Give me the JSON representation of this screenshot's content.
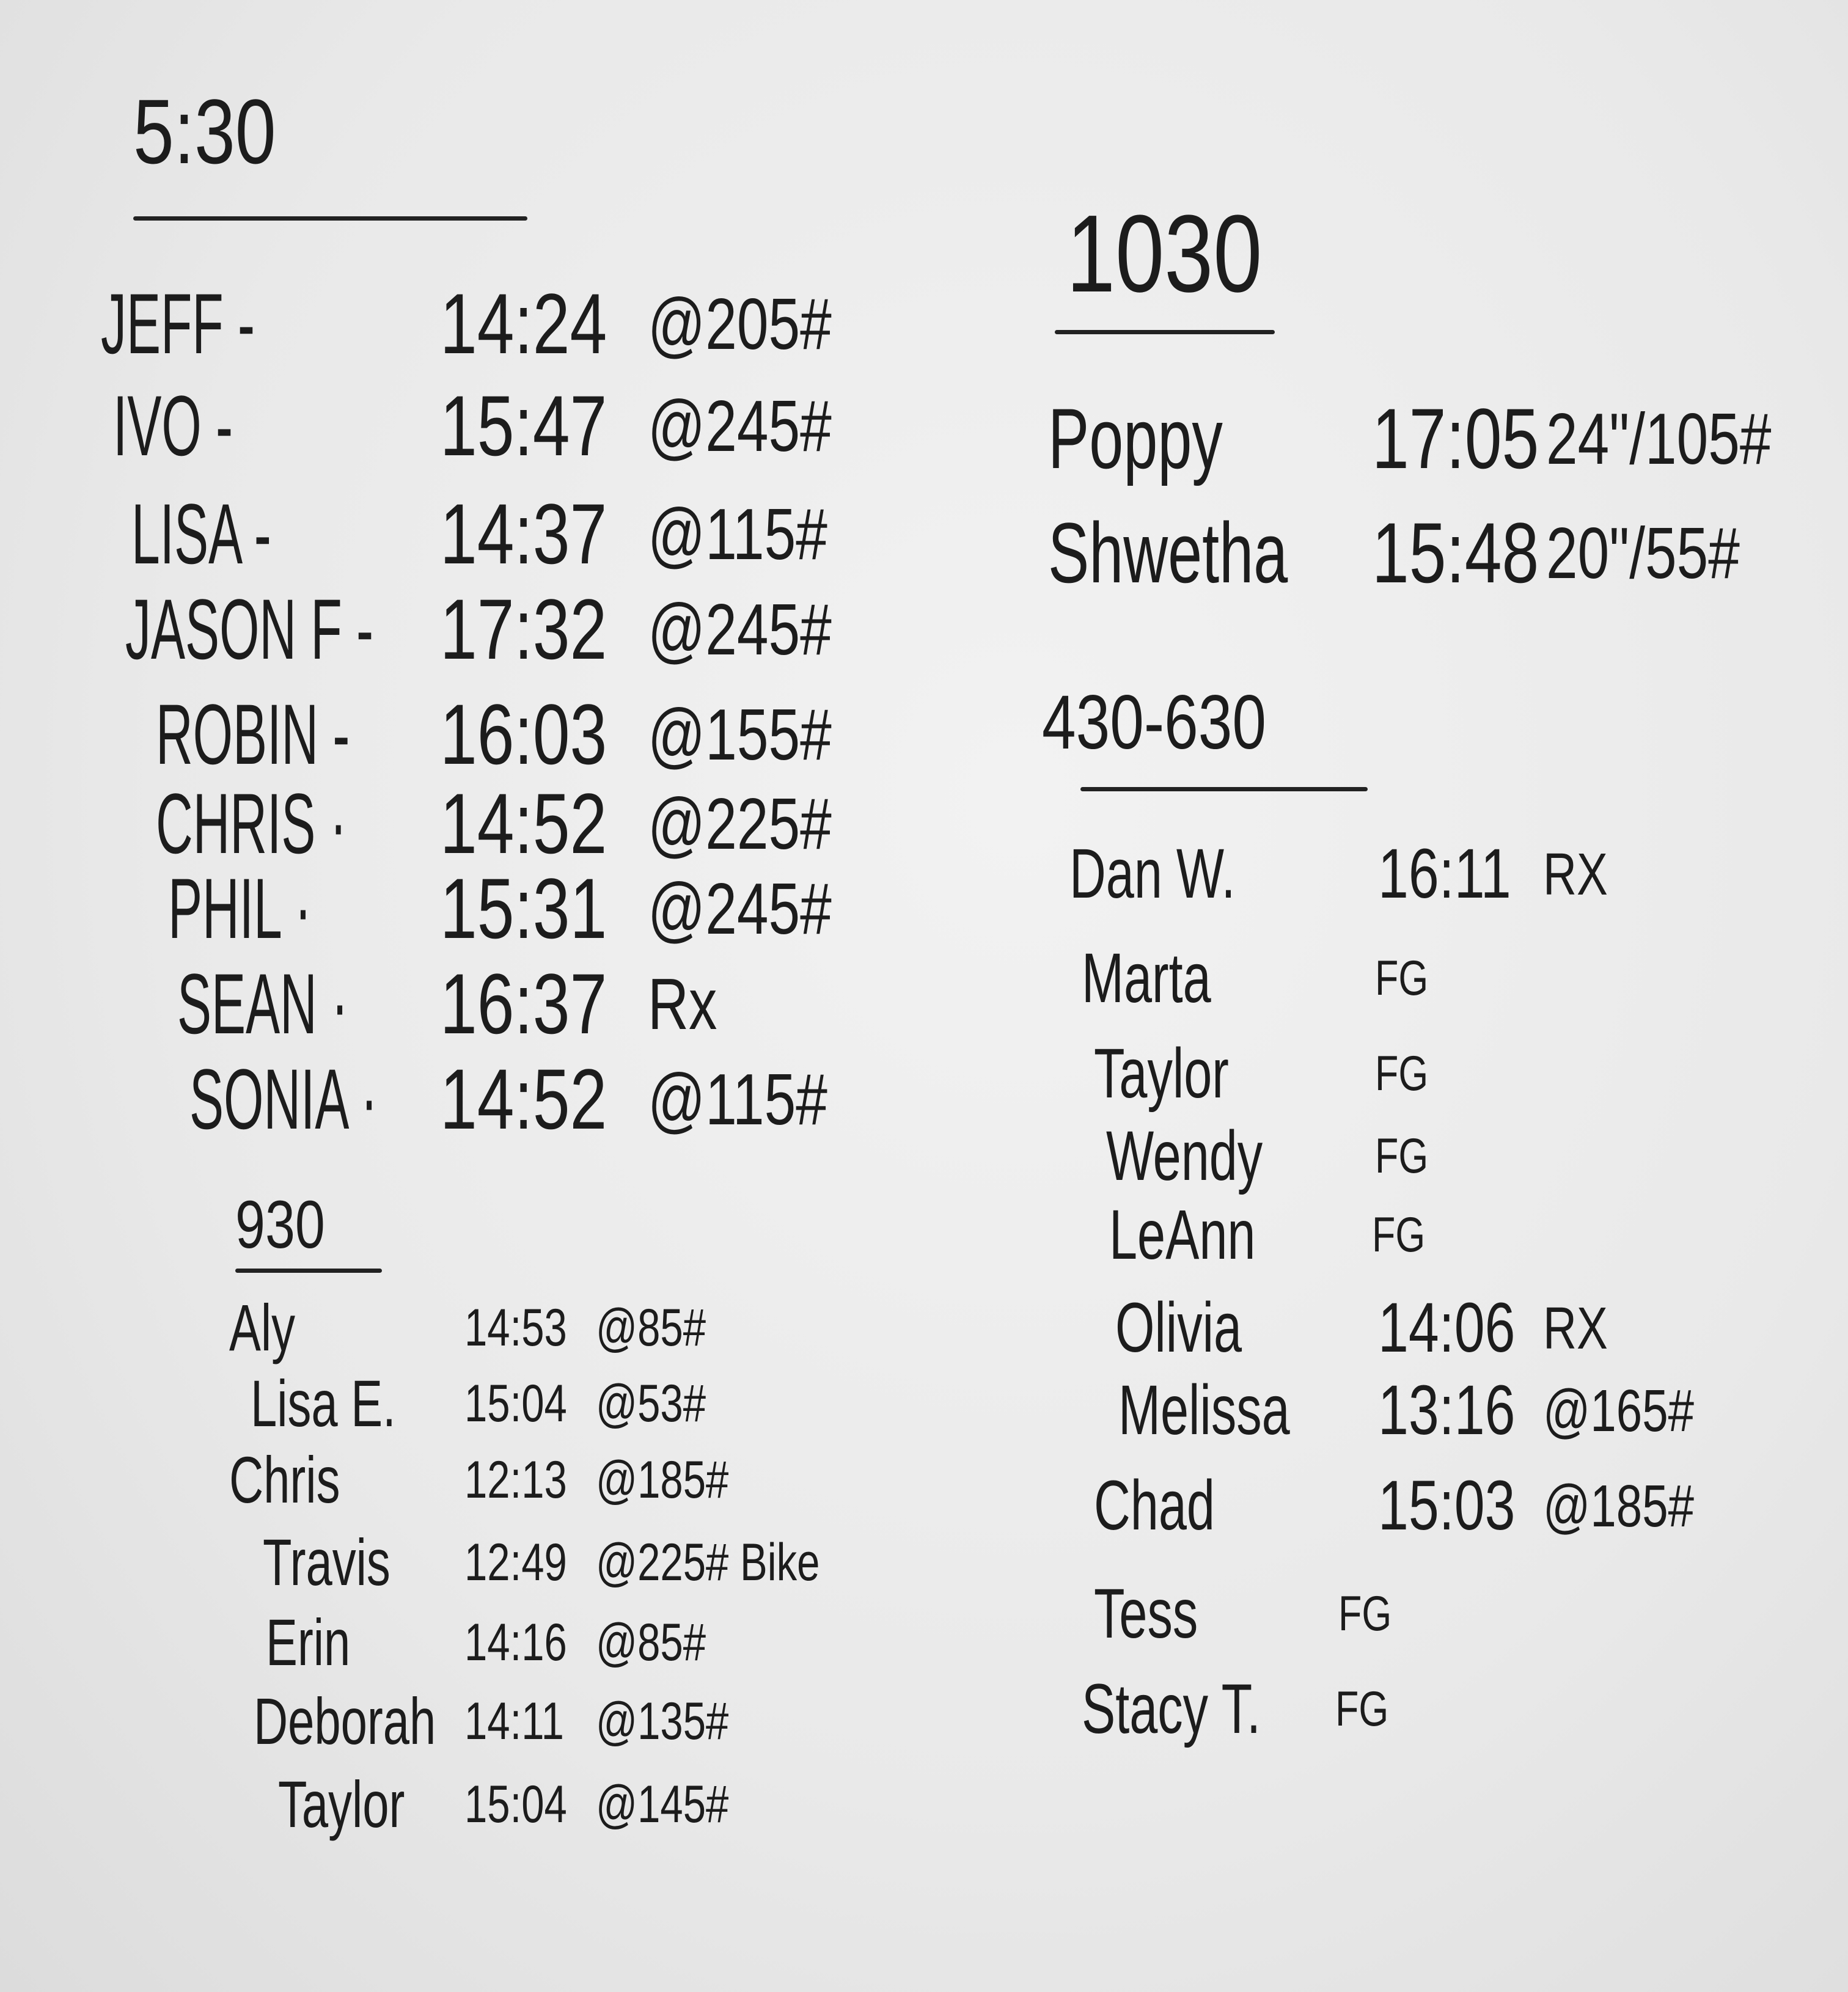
{
  "board": {
    "sections": [
      {
        "heading": "5:30",
        "entries": [
          {
            "name": "JEFF -",
            "time": "14:24",
            "result": "@205#"
          },
          {
            "name": "IVO -",
            "time": "15:47",
            "result": "@245#"
          },
          {
            "name": "LISA -",
            "time": "14:37",
            "result": "@115#"
          },
          {
            "name": "JASON F -",
            "time": "17:32",
            "result": "@245#"
          },
          {
            "name": "ROBIN -",
            "time": "16:03",
            "result": "@155#"
          },
          {
            "name": "CHRIS ·",
            "time": "14:52",
            "result": "@225#"
          },
          {
            "name": "PHIL ·",
            "time": "15:31",
            "result": "@245#"
          },
          {
            "name": "SEAN ·",
            "time": "16:37",
            "result": "Rx"
          },
          {
            "name": "SONIA ·",
            "time": "14:52",
            "result": "@115#"
          }
        ]
      },
      {
        "heading": "930",
        "entries": [
          {
            "name": "Aly",
            "time": "14:53",
            "result": "@85#"
          },
          {
            "name": "Lisa E.",
            "time": "15:04",
            "result": "@53#"
          },
          {
            "name": "Chris",
            "time": "12:13",
            "result": "@185#"
          },
          {
            "name": "Travis",
            "time": "12:49",
            "result": "@225# Bike"
          },
          {
            "name": "Erin",
            "time": "14:16",
            "result": "@85#"
          },
          {
            "name": "Deborah",
            "time": "14:11",
            "result": "@135#"
          },
          {
            "name": "Taylor",
            "time": "15:04",
            "result": "@145#"
          }
        ]
      },
      {
        "heading": "1030",
        "entries": [
          {
            "name": "Poppy",
            "time": "17:05",
            "result": "24\"/105#"
          },
          {
            "name": "Shwetha",
            "time": "15:48",
            "result": "20\"/55#"
          }
        ]
      },
      {
        "heading": "430-630",
        "entries": [
          {
            "name": "Dan W.",
            "time": "16:11",
            "result": "RX"
          },
          {
            "name": "Marta",
            "time": "",
            "result": "FG"
          },
          {
            "name": "Taylor",
            "time": "",
            "result": "FG"
          },
          {
            "name": "Wendy",
            "time": "",
            "result": "FG"
          },
          {
            "name": "LeAnn",
            "time": "",
            "result": "FG"
          },
          {
            "name": "Olivia",
            "time": "14:06",
            "result": "RX"
          },
          {
            "name": "Melissa",
            "time": "13:16",
            "result": "@165#"
          },
          {
            "name": "Chad",
            "time": "15:03",
            "result": "@185#"
          },
          {
            "name": "Tess",
            "time": "",
            "result": "FG"
          },
          {
            "name": "Stacy T.",
            "time": "",
            "result": "FG"
          }
        ]
      }
    ]
  }
}
